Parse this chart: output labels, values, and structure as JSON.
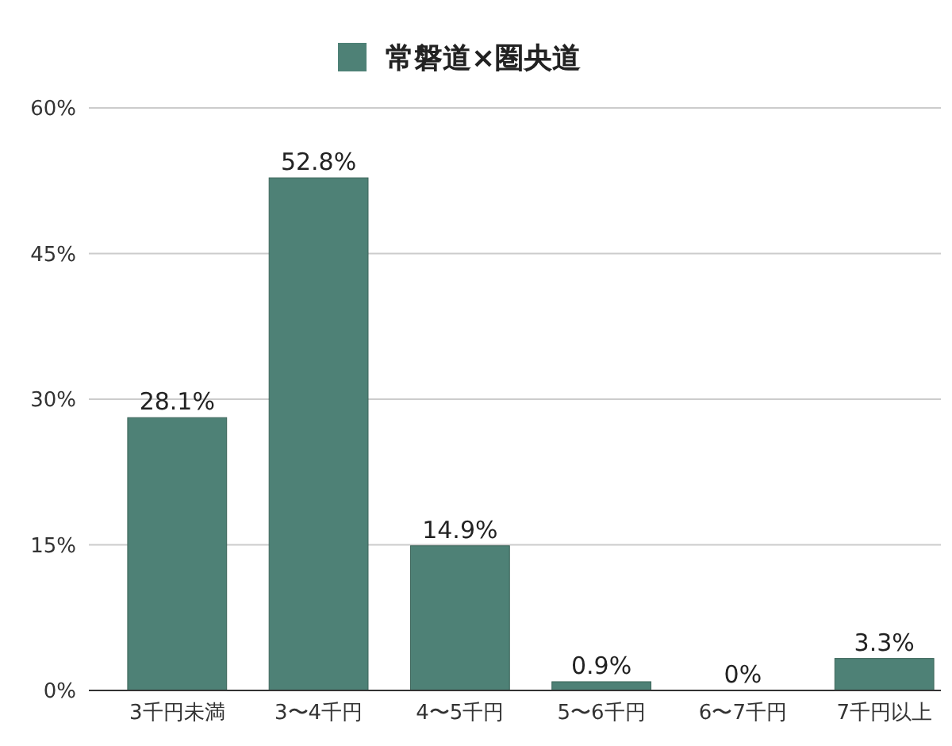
{
  "chart_data": {
    "type": "bar",
    "categories": [
      "3千円未満",
      "3〜4千円",
      "4〜5千円",
      "5〜6千円",
      "6〜7千円",
      "7千円以上"
    ],
    "series": [
      {
        "name": "常磐道×圏央道",
        "color": "#4e8176",
        "values": [
          28.1,
          52.8,
          14.9,
          0.9,
          0,
          3.3
        ],
        "value_labels": [
          "28.1%",
          "52.8%",
          "14.9%",
          "0.9%",
          "0%",
          "3.3%"
        ]
      }
    ],
    "ylim": [
      0,
      60
    ],
    "yticks": [
      {
        "value": 0,
        "label": "0%"
      },
      {
        "value": 15,
        "label": "15%"
      },
      {
        "value": 30,
        "label": "30%"
      },
      {
        "value": 45,
        "label": "45%"
      },
      {
        "value": 60,
        "label": "60%"
      }
    ],
    "grid": "y",
    "legend": "top"
  }
}
